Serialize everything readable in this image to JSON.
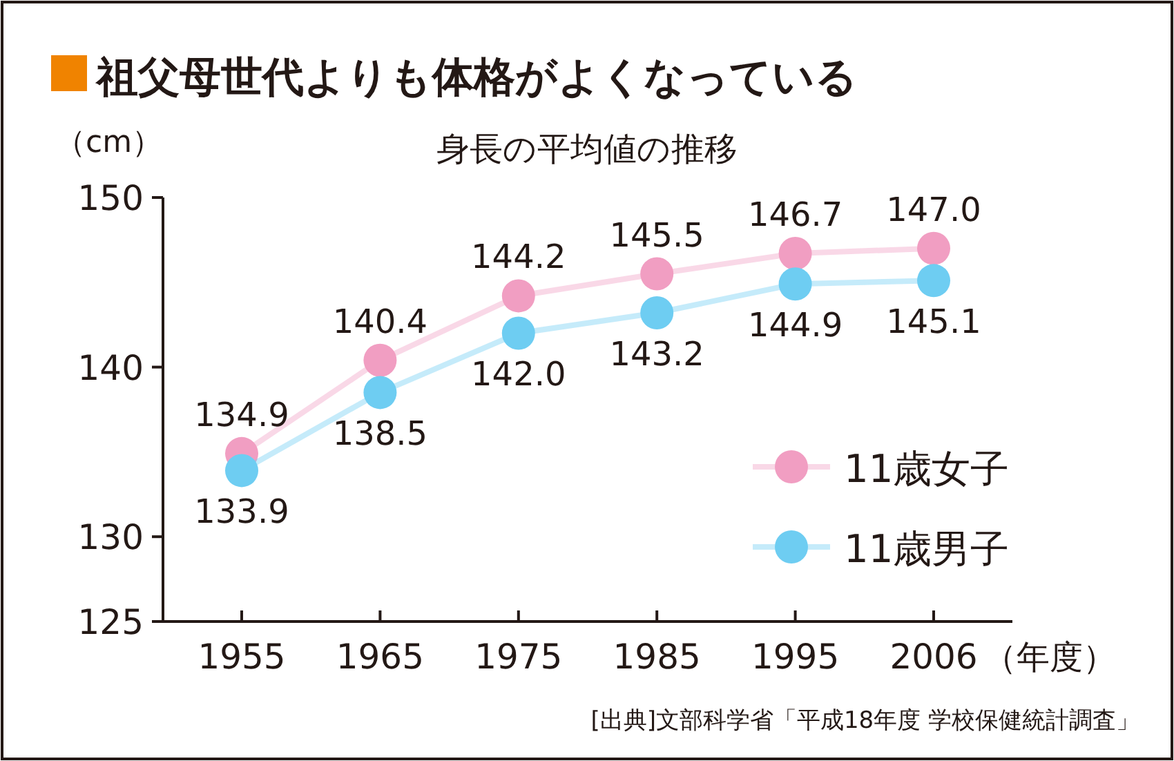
{
  "chart_data": {
    "type": "line",
    "title": "祖父母世代よりも体格がよくなっている",
    "subtitle": "身長の平均値の推移",
    "ylabel": "（cm）",
    "xlabel": "（年度）",
    "categories": [
      "1955",
      "1965",
      "1975",
      "1985",
      "1995",
      "2006"
    ],
    "series": [
      {
        "name": "11歳女子",
        "color": "#f19ec2",
        "values": [
          134.9,
          140.4,
          144.2,
          145.5,
          146.7,
          147.0
        ],
        "value_labels": [
          "134.9",
          "140.4",
          "144.2",
          "145.5",
          "146.7",
          "147.0"
        ]
      },
      {
        "name": "11歳男子",
        "color": "#6ecdf2",
        "values": [
          133.9,
          138.5,
          142.0,
          143.2,
          144.9,
          145.1
        ],
        "value_labels": [
          "133.9",
          "138.5",
          "142.0",
          "143.2",
          "144.9",
          "145.1"
        ]
      }
    ],
    "ylim": [
      125,
      150
    ],
    "yticks": [
      125,
      130,
      140,
      150
    ],
    "legend": "right",
    "marker": "circle",
    "grid": false,
    "annotations": [
      "[出典]文部科学省「平成18年度 学校保健統計調査」"
    ]
  }
}
